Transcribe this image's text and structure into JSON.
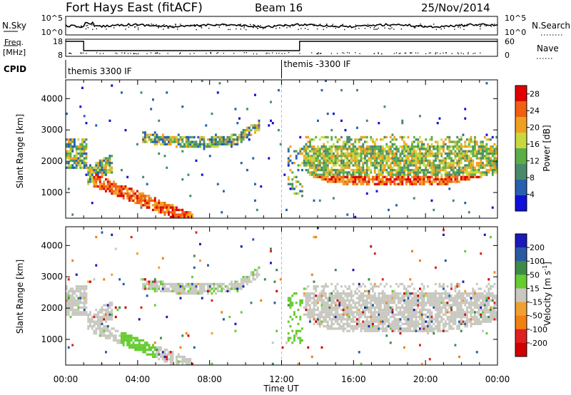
{
  "header": {
    "title": "Fort Hays East (fitACF)",
    "beam": "Beam 16",
    "date": "25/Nov/2014"
  },
  "noise_panel": {
    "left_label": "N.Sky",
    "right_label": "N.Search",
    "left_ticks": [
      "10^5",
      "10^0"
    ],
    "right_ticks": [
      "10^5",
      "10^0"
    ]
  },
  "freq_panel": {
    "left_label_1": "Freq.",
    "left_label_2": "[MHz]",
    "right_label": "Nave",
    "left_ticks": [
      "18",
      "8"
    ],
    "right_ticks": [
      "60",
      "0"
    ]
  },
  "cpid": {
    "label": "CPID",
    "segments": [
      "themis 3300 IF",
      "themis -3300 IF"
    ],
    "switch_time_hours": 12.0
  },
  "chart_data": [
    {
      "type": "heatmap",
      "name": "power-panel",
      "ylabel": "Slant Range [km]",
      "x_ticks": [
        "00:00",
        "04:00",
        "08:00",
        "12:00",
        "16:00",
        "20:00",
        "00:00"
      ],
      "x_range_hours": [
        0,
        24
      ],
      "y_ticks": [
        1000,
        2000,
        3000,
        4000
      ],
      "y_range_km": [
        180,
        4600
      ],
      "colorbar": {
        "label": "Power [dB]",
        "ticks": [
          4,
          8,
          12,
          16,
          20,
          24,
          28
        ],
        "range": [
          0,
          30
        ]
      },
      "colors": [
        "#1010d8",
        "#2860b0",
        "#4a8a6a",
        "#5cae48",
        "#c8d840",
        "#f0a020",
        "#f06010",
        "#e00000"
      ]
    },
    {
      "type": "heatmap",
      "name": "velocity-panel",
      "xlabel": "Time UT",
      "ylabel": "Slant Range [km]",
      "x_ticks": [
        "00:00",
        "04:00",
        "08:00",
        "12:00",
        "16:00",
        "20:00",
        "00:00"
      ],
      "x_range_hours": [
        0,
        24
      ],
      "y_ticks": [
        1000,
        2000,
        3000,
        4000
      ],
      "y_range_km": [
        180,
        4600
      ],
      "colorbar": {
        "label": "Velocity [m s",
        "label_sup": "-1",
        "label_end": "]",
        "ticks": [
          "200",
          "100",
          "50",
          "15",
          "-15",
          "-50",
          "-100",
          "-200"
        ]
      },
      "colors": [
        "#1a1ab8",
        "#2a5aa0",
        "#3f8a48",
        "#66cc30",
        "#c8c8c0",
        "#f0a030",
        "#f08010",
        "#e02020",
        "#d00000"
      ]
    }
  ]
}
